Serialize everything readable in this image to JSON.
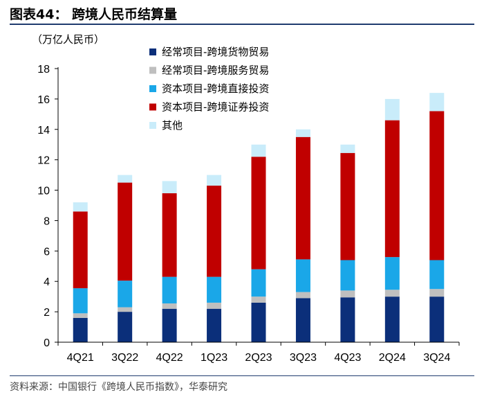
{
  "header": {
    "title": "图表44：  跨境人民币结算量"
  },
  "footer": {
    "source": "资料来源：中国银行《跨境人民币指数》，华泰研究"
  },
  "chart_data": {
    "type": "bar",
    "stacked": true,
    "unit_label": "（万亿人民币）",
    "categories": [
      "4Q21",
      "3Q22",
      "4Q22",
      "1Q23",
      "2Q23",
      "3Q23",
      "4Q23",
      "2Q24",
      "3Q24"
    ],
    "ylim": [
      0,
      18
    ],
    "yticks": [
      0,
      2,
      4,
      6,
      8,
      10,
      12,
      14,
      16,
      18
    ],
    "legend_position": "top-right",
    "series": [
      {
        "name": "经常项目-跨境货物贸易",
        "color": "#0b2f7a",
        "values": [
          1.6,
          2.0,
          2.2,
          2.2,
          2.6,
          2.9,
          2.95,
          3.0,
          3.0
        ]
      },
      {
        "name": "经常项目-跨境服务贸易",
        "color": "#bfbfbf",
        "values": [
          0.3,
          0.3,
          0.35,
          0.4,
          0.4,
          0.4,
          0.45,
          0.45,
          0.5
        ]
      },
      {
        "name": "资本项目-跨境直接投资",
        "color": "#1aa7e8",
        "values": [
          1.65,
          1.75,
          1.75,
          1.7,
          1.8,
          2.15,
          2.0,
          2.15,
          1.9
        ]
      },
      {
        "name": "资本项目-跨境证券投资",
        "color": "#c00000",
        "values": [
          5.05,
          6.45,
          5.5,
          6.0,
          7.4,
          8.05,
          7.05,
          9.0,
          9.8
        ]
      },
      {
        "name": "其他",
        "color": "#c9ecfa",
        "values": [
          0.6,
          0.5,
          0.8,
          0.7,
          0.8,
          0.5,
          0.55,
          1.4,
          1.2
        ]
      }
    ]
  }
}
